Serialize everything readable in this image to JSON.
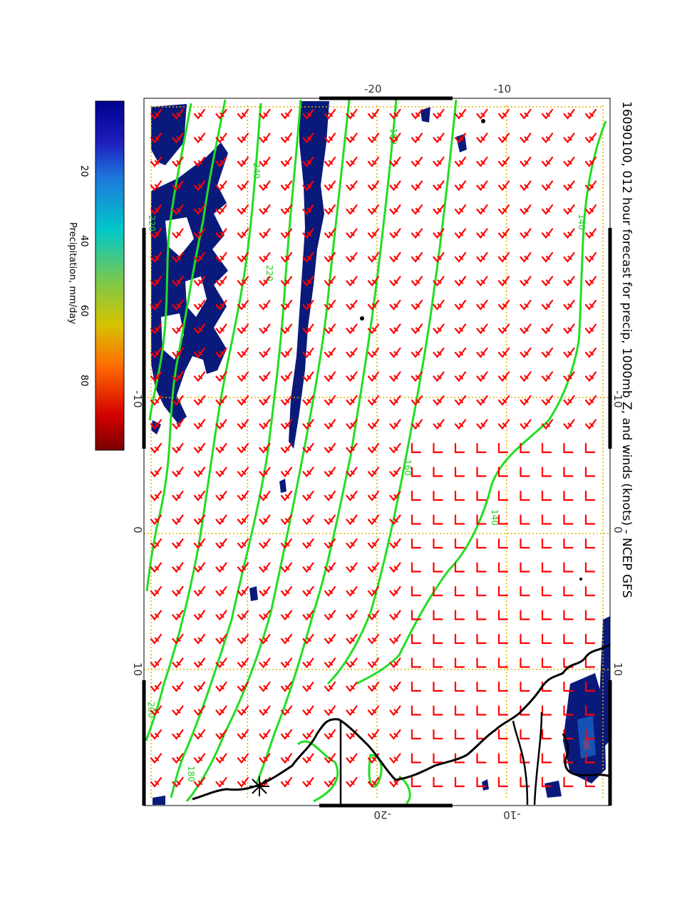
{
  "title": "16090100, 012 hour forecast for precip, 1000mb Z, and winds (knots) - NCEP GFS",
  "colorbar": {
    "label": "Precipitation, mm/day",
    "ticks": [
      "20",
      "40",
      "60",
      "80"
    ],
    "tick_values": [
      20,
      40,
      60,
      80
    ],
    "range": [
      0,
      100
    ],
    "colors": [
      "#7a0000",
      "#d40000",
      "#ff6a00",
      "#d6c400",
      "#7ec84a",
      "#00c8c8",
      "#1e78dc",
      "#1e1ebe",
      "#000090"
    ]
  },
  "map": {
    "lon_range": [
      -32,
      20
    ],
    "lat_range": [
      -38,
      -2
    ],
    "longitude_ticks": [
      "-10",
      "0",
      "10"
    ],
    "longitude_values": [
      -10,
      0,
      10
    ],
    "latitude_ticks_left": [
      "-20",
      "-10"
    ],
    "latitude_ticks_right": [
      "-20",
      "-10"
    ],
    "latitude_values": [
      -20,
      -10
    ],
    "gridline_color": "#e0b000",
    "contour_color": "#22dd22",
    "wind_barb_color": "#ff0000",
    "precip_color": "#0a1a7a",
    "coastline_color": "#000000"
  },
  "contours": [
    {
      "label": "240"
    },
    {
      "label": "220"
    },
    {
      "label": "220"
    },
    {
      "label": "200"
    },
    {
      "label": "180"
    },
    {
      "label": "180"
    },
    {
      "label": "160"
    },
    {
      "label": "140"
    },
    {
      "label": "140"
    }
  ],
  "wind_barb_rows": 29,
  "wind_barb_cols": 21
}
